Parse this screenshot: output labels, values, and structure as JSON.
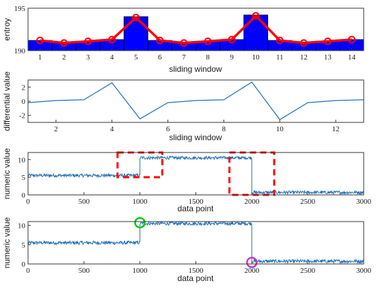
{
  "colors": {
    "bar": "#0000ff",
    "entropy_line": "#ff0000",
    "signal": "#1f6fb4",
    "dashed_box": "#ff0000",
    "start_marker": "#00cc00",
    "end_marker": "#cc33cc",
    "axis": "#333333"
  },
  "chart_data": [
    {
      "type": "bar",
      "id": "entropy",
      "xlabel": "sliding window",
      "ylabel": "entroy",
      "categories": [
        "1",
        "2",
        "3",
        "4",
        "5",
        "6",
        "7",
        "8",
        "9",
        "10",
        "11",
        "12",
        "13",
        "14"
      ],
      "ylim": [
        190,
        195
      ],
      "yticks": [
        190,
        195
      ],
      "bars": [
        191.2,
        191.0,
        191.1,
        191.3,
        194.0,
        191.2,
        191.0,
        191.1,
        191.3,
        194.2,
        191.2,
        191.0,
        191.1,
        191.3
      ],
      "line": [
        191.2,
        190.9,
        191.1,
        191.3,
        193.9,
        191.2,
        190.9,
        191.1,
        191.3,
        194.1,
        191.2,
        190.9,
        191.1,
        191.3
      ],
      "line_marker": "circle",
      "grid": false
    },
    {
      "type": "line",
      "id": "differential",
      "xlabel": "sliding window",
      "ylabel": "differential value",
      "x": [
        1,
        2,
        3,
        4,
        5,
        6,
        7,
        8,
        9,
        10,
        11,
        12,
        13
      ],
      "y": [
        -0.2,
        0.1,
        0.2,
        2.6,
        -2.5,
        -0.2,
        0.1,
        0.2,
        2.7,
        -2.6,
        -0.2,
        0.1,
        0.2
      ],
      "xlim": [
        1,
        13
      ],
      "ylim": [
        -3,
        3
      ],
      "xticks": [
        2,
        4,
        6,
        8,
        10,
        12
      ],
      "yticks": [
        -2,
        0,
        2
      ],
      "grid": false
    },
    {
      "type": "line",
      "id": "signal_boxes",
      "xlabel": "data point",
      "ylabel": "numeric value",
      "segments": [
        {
          "x_range": [
            0,
            1000
          ],
          "level": 5.5,
          "noise": 0.45
        },
        {
          "x_range": [
            1000,
            2000
          ],
          "level": 10.5,
          "noise": 0.45
        },
        {
          "x_range": [
            2000,
            3000
          ],
          "level": 0.7,
          "noise": 0.45
        }
      ],
      "xlim": [
        0,
        3000
      ],
      "ylim": [
        0,
        12
      ],
      "xticks": [
        0,
        500,
        1000,
        1500,
        2000,
        2500,
        3000
      ],
      "yticks": [
        0,
        5,
        10
      ],
      "annotations": [
        {
          "kind": "dashed-box",
          "x_range": [
            800,
            1200
          ],
          "y_range": [
            5,
            12
          ]
        },
        {
          "kind": "dashed-box",
          "x_range": [
            1800,
            2200
          ],
          "y_range": [
            0,
            12
          ]
        }
      ],
      "grid": false
    },
    {
      "type": "line",
      "id": "signal_markers",
      "xlabel": "data point",
      "ylabel": "numeric value",
      "segments": [
        {
          "x_range": [
            0,
            1000
          ],
          "level": 5.5,
          "noise": 0.45
        },
        {
          "x_range": [
            1000,
            2000
          ],
          "level": 10.5,
          "noise": 0.45
        },
        {
          "x_range": [
            2000,
            3000
          ],
          "level": 0.7,
          "noise": 0.45
        }
      ],
      "xlim": [
        0,
        3000
      ],
      "ylim": [
        0,
        11
      ],
      "xticks": [
        0,
        500,
        1000,
        1500,
        2000,
        2500,
        3000
      ],
      "yticks": [
        0,
        5,
        10
      ],
      "annotations": [
        {
          "kind": "circle",
          "x": 1000,
          "y": 10.7,
          "color": "start_marker"
        },
        {
          "kind": "circle",
          "x": 2000,
          "y": 0.4,
          "color": "end_marker"
        }
      ],
      "grid": false
    }
  ]
}
